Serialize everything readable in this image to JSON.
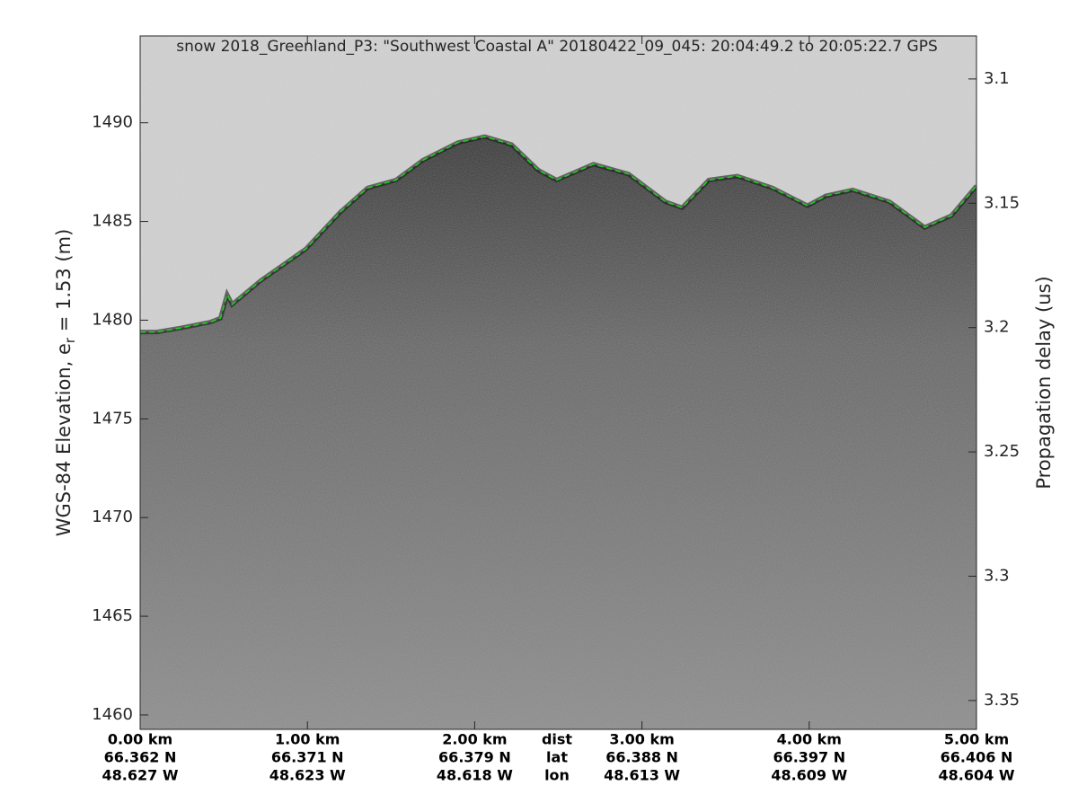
{
  "chart_data": {
    "type": "line",
    "title": "snow 2018_Greenland_P3: \"Southwest Coastal A\"  20180422_09_045: 20:04:49.2 to 20:05:22.7 GPS",
    "ylabel": {
      "text": "WGS-84 Elevation, e",
      "subscript": "r",
      "suffix": " = 1.53 (m)"
    },
    "y2label": "Propagation delay (us)",
    "x": [
      0,
      0.1,
      0.24,
      0.42,
      0.48,
      0.52,
      0.55,
      0.72,
      0.99,
      1.2,
      1.36,
      1.53,
      1.69,
      1.9,
      2.06,
      2.22,
      2.38,
      2.49,
      2.71,
      2.92,
      3.14,
      3.24,
      3.4,
      3.57,
      3.78,
      3.99,
      4.1,
      4.26,
      4.48,
      4.69,
      4.85,
      5.0
    ],
    "values": [
      1479.4,
      1479.4,
      1479.6,
      1479.9,
      1480.1,
      1481.3,
      1480.8,
      1482.0,
      1483.6,
      1485.5,
      1486.7,
      1487.1,
      1488.1,
      1489.0,
      1489.3,
      1488.9,
      1487.6,
      1487.1,
      1487.9,
      1487.4,
      1486.0,
      1485.7,
      1487.1,
      1487.3,
      1486.7,
      1485.8,
      1486.3,
      1486.6,
      1486.0,
      1484.7,
      1485.3,
      1486.8
    ],
    "color": "#1fd21f",
    "xlim": [
      0,
      5
    ],
    "xticks": [
      {
        "value": 0,
        "label": "0.00 km"
      },
      {
        "value": 1,
        "label": "1.00 km"
      },
      {
        "value": 2,
        "label": "2.00 km"
      },
      {
        "value": 3,
        "label": "3.00 km"
      },
      {
        "value": 4,
        "label": "4.00 km"
      },
      {
        "value": 5,
        "label": "5.00 km"
      }
    ],
    "lat_labels": [
      "66.362 N",
      "66.371 N",
      "66.379 N",
      "66.388 N",
      "66.397 N",
      "66.406 N"
    ],
    "lon_labels": [
      "48.627 W",
      "48.623 W",
      "48.618 W",
      "48.613 W",
      "48.609 W",
      "48.604 W"
    ],
    "row_names": [
      "dist",
      "lat",
      "lon"
    ],
    "ylim": [
      1459.27,
      1494.4
    ],
    "yticks": [
      1460,
      1465,
      1470,
      1475,
      1480,
      1485,
      1490
    ],
    "y2lim": [
      3.3616,
      3.0827
    ],
    "y2ticks": [
      3.1,
      3.15,
      3.2,
      3.25,
      3.3,
      3.35
    ]
  }
}
